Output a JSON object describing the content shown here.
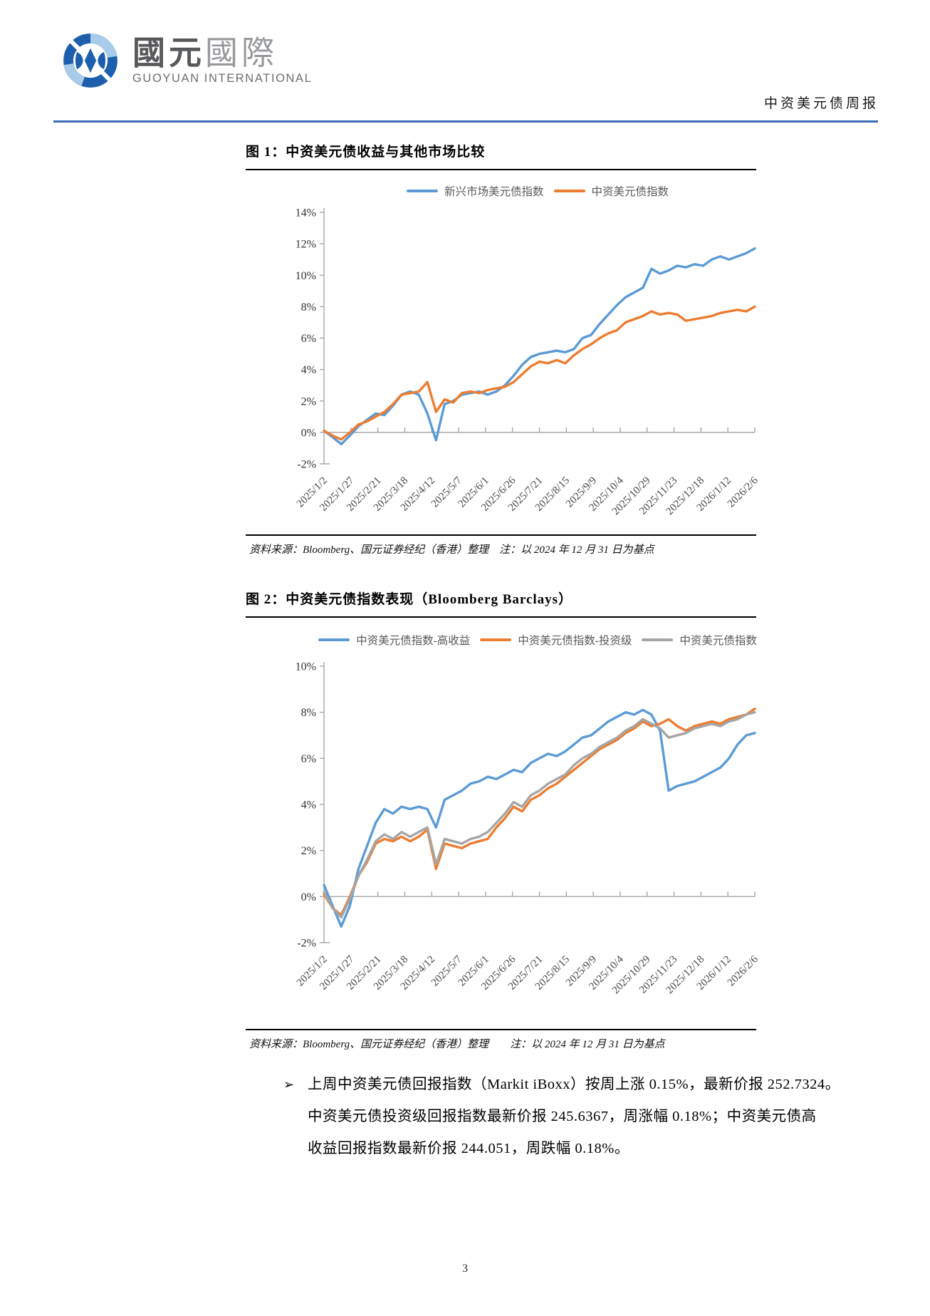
{
  "header": {
    "logo_cn_primary": "國元",
    "logo_cn_secondary": "國際",
    "logo_subtext": "GUOYUAN INTERNATIONAL",
    "report_type": "中资美元债周报",
    "rule_color": "#3a6cb5",
    "logo_colors": {
      "dark": "#1e5fad",
      "light": "#a7cbe9"
    }
  },
  "figure1": {
    "title": "图 1：中资美元债收益与其他市场比较",
    "source_note": "资料来源：Bloomberg、国元证券经纪（香港）整理　注：以 2024 年 12 月 31 日为基点"
  },
  "figure2": {
    "title": "图 2：中资美元债指数表现（Bloomberg Barclays）",
    "source_note": "资料来源：Bloomberg、国元证券经纪（香港）整理　　注：以 2024 年 12 月 31 日为基点"
  },
  "commentary": {
    "bullet": "➢",
    "lines": [
      "上周中资美元债回报指数（Markit iBoxx）按周上涨 0.15%，最新价报 252.7324。",
      "中资美元债投资级回报指数最新价报 245.6367，周涨幅 0.18%；中资美元债高",
      "收益回报指数最新价报 244.051，周跌幅 0.18%。"
    ]
  },
  "page_number": "3",
  "chart_data": [
    {
      "type": "line",
      "title": "中资美元债收益与其他市场比较",
      "xlabel": "",
      "ylabel": "",
      "ylim": [
        -2,
        14
      ],
      "y_ticks": [
        14,
        12,
        10,
        8,
        6,
        4,
        2,
        0,
        -2
      ],
      "y_tick_suffix": "%",
      "grid": false,
      "legend_position": "top",
      "axis_color": "#a6a6a6",
      "baseline_note": "以2024年12月31日为基点",
      "x_step_days": 8,
      "x_max_day": 400,
      "x_tick_days": [
        0,
        25,
        50,
        75,
        100,
        125,
        150,
        175,
        200,
        225,
        250,
        275,
        300,
        325,
        350,
        375,
        400
      ],
      "x_tick_labels": [
        "2025/1/2",
        "2025/1/27",
        "2025/2/21",
        "2025/3/18",
        "2025/4/12",
        "2025/5/7",
        "2025/6/1",
        "2025/6/26",
        "2025/7/21",
        "2025/8/15",
        "2025/9/9",
        "2025/10/4",
        "2025/10/29",
        "2025/11/23",
        "2025/12/18",
        "2026/1/12",
        "2026/2/6"
      ],
      "series": [
        {
          "name": "新兴市场美元债指数",
          "color": "#5B9BD5",
          "values": [
            0.1,
            -0.3,
            -0.75,
            -0.2,
            0.4,
            0.8,
            1.2,
            1.1,
            1.7,
            2.4,
            2.6,
            2.4,
            1.2,
            -0.5,
            1.8,
            2.0,
            2.4,
            2.5,
            2.6,
            2.4,
            2.6,
            3.0,
            3.6,
            4.3,
            4.8,
            5.0,
            5.1,
            5.2,
            5.1,
            5.3,
            6.0,
            6.2,
            6.9,
            7.5,
            8.1,
            8.6,
            8.9,
            9.2,
            10.4,
            10.1,
            10.3,
            10.6,
            10.5,
            10.7,
            10.6,
            11.0,
            11.2,
            11.0,
            11.2,
            11.4,
            11.7
          ]
        },
        {
          "name": "中资美元债指数",
          "color": "#ED7D31",
          "values": [
            0.1,
            -0.2,
            -0.45,
            0.0,
            0.5,
            0.7,
            1.0,
            1.3,
            1.8,
            2.4,
            2.5,
            2.6,
            3.2,
            1.3,
            2.1,
            1.9,
            2.5,
            2.6,
            2.5,
            2.7,
            2.8,
            2.9,
            3.2,
            3.7,
            4.2,
            4.5,
            4.4,
            4.6,
            4.4,
            4.9,
            5.3,
            5.6,
            6.0,
            6.3,
            6.5,
            7.0,
            7.2,
            7.4,
            7.7,
            7.5,
            7.6,
            7.5,
            7.1,
            7.2,
            7.3,
            7.4,
            7.6,
            7.7,
            7.8,
            7.7,
            8.0
          ]
        }
      ]
    },
    {
      "type": "line",
      "title": "中资美元债指数表现（Bloomberg Barclays）",
      "xlabel": "",
      "ylabel": "",
      "ylim": [
        -2,
        10
      ],
      "y_ticks": [
        10,
        8,
        6,
        4,
        2,
        0,
        -2
      ],
      "y_tick_suffix": "%",
      "grid": false,
      "legend_position": "top",
      "axis_color": "#a6a6a6",
      "baseline_note": "以2024年12月31日为基点",
      "x_step_days": 8,
      "x_max_day": 400,
      "x_tick_days": [
        0,
        25,
        50,
        75,
        100,
        125,
        150,
        175,
        200,
        225,
        250,
        275,
        300,
        325,
        350,
        375,
        400
      ],
      "x_tick_labels": [
        "2025/1/2",
        "2025/1/27",
        "2025/2/21",
        "2025/3/18",
        "2025/4/12",
        "2025/5/7",
        "2025/6/1",
        "2025/6/26",
        "2025/7/21",
        "2025/8/15",
        "2025/9/9",
        "2025/10/4",
        "2025/10/29",
        "2025/11/23",
        "2025/12/18",
        "2026/1/12",
        "2026/2/6"
      ],
      "series": [
        {
          "name": "中资美元债指数-高收益",
          "color": "#5B9BD5",
          "values": [
            0.5,
            -0.4,
            -1.3,
            -0.4,
            1.2,
            2.2,
            3.2,
            3.8,
            3.6,
            3.9,
            3.8,
            3.9,
            3.8,
            3.0,
            4.2,
            4.4,
            4.6,
            4.9,
            5.0,
            5.2,
            5.1,
            5.3,
            5.5,
            5.4,
            5.8,
            6.0,
            6.2,
            6.1,
            6.3,
            6.6,
            6.9,
            7.0,
            7.3,
            7.6,
            7.8,
            8.0,
            7.9,
            8.1,
            7.9,
            7.2,
            4.6,
            4.8,
            4.9,
            5.0,
            5.2,
            5.4,
            5.6,
            6.0,
            6.6,
            7.0,
            7.1
          ]
        },
        {
          "name": "中资美元债指数-投资级",
          "color": "#ED7D31",
          "values": [
            0.1,
            -0.5,
            -0.8,
            0.0,
            0.9,
            1.5,
            2.3,
            2.5,
            2.4,
            2.6,
            2.4,
            2.6,
            2.9,
            1.2,
            2.3,
            2.2,
            2.1,
            2.3,
            2.4,
            2.5,
            3.0,
            3.4,
            3.9,
            3.7,
            4.2,
            4.4,
            4.7,
            4.9,
            5.2,
            5.5,
            5.8,
            6.1,
            6.4,
            6.6,
            6.8,
            7.1,
            7.3,
            7.6,
            7.4,
            7.5,
            7.7,
            7.4,
            7.2,
            7.4,
            7.5,
            7.6,
            7.5,
            7.7,
            7.8,
            7.9,
            8.15
          ]
        },
        {
          "name": "中资美元债指数",
          "color": "#A6A6A6",
          "values": [
            0.2,
            -0.5,
            -0.9,
            -0.1,
            0.9,
            1.6,
            2.4,
            2.7,
            2.5,
            2.8,
            2.6,
            2.8,
            3.0,
            1.4,
            2.5,
            2.4,
            2.3,
            2.5,
            2.6,
            2.8,
            3.2,
            3.6,
            4.1,
            3.9,
            4.4,
            4.6,
            4.9,
            5.1,
            5.3,
            5.7,
            6.0,
            6.2,
            6.5,
            6.7,
            6.9,
            7.2,
            7.4,
            7.7,
            7.5,
            7.3,
            6.9,
            7.0,
            7.1,
            7.3,
            7.4,
            7.5,
            7.4,
            7.6,
            7.7,
            7.9,
            8.0
          ]
        }
      ]
    }
  ]
}
